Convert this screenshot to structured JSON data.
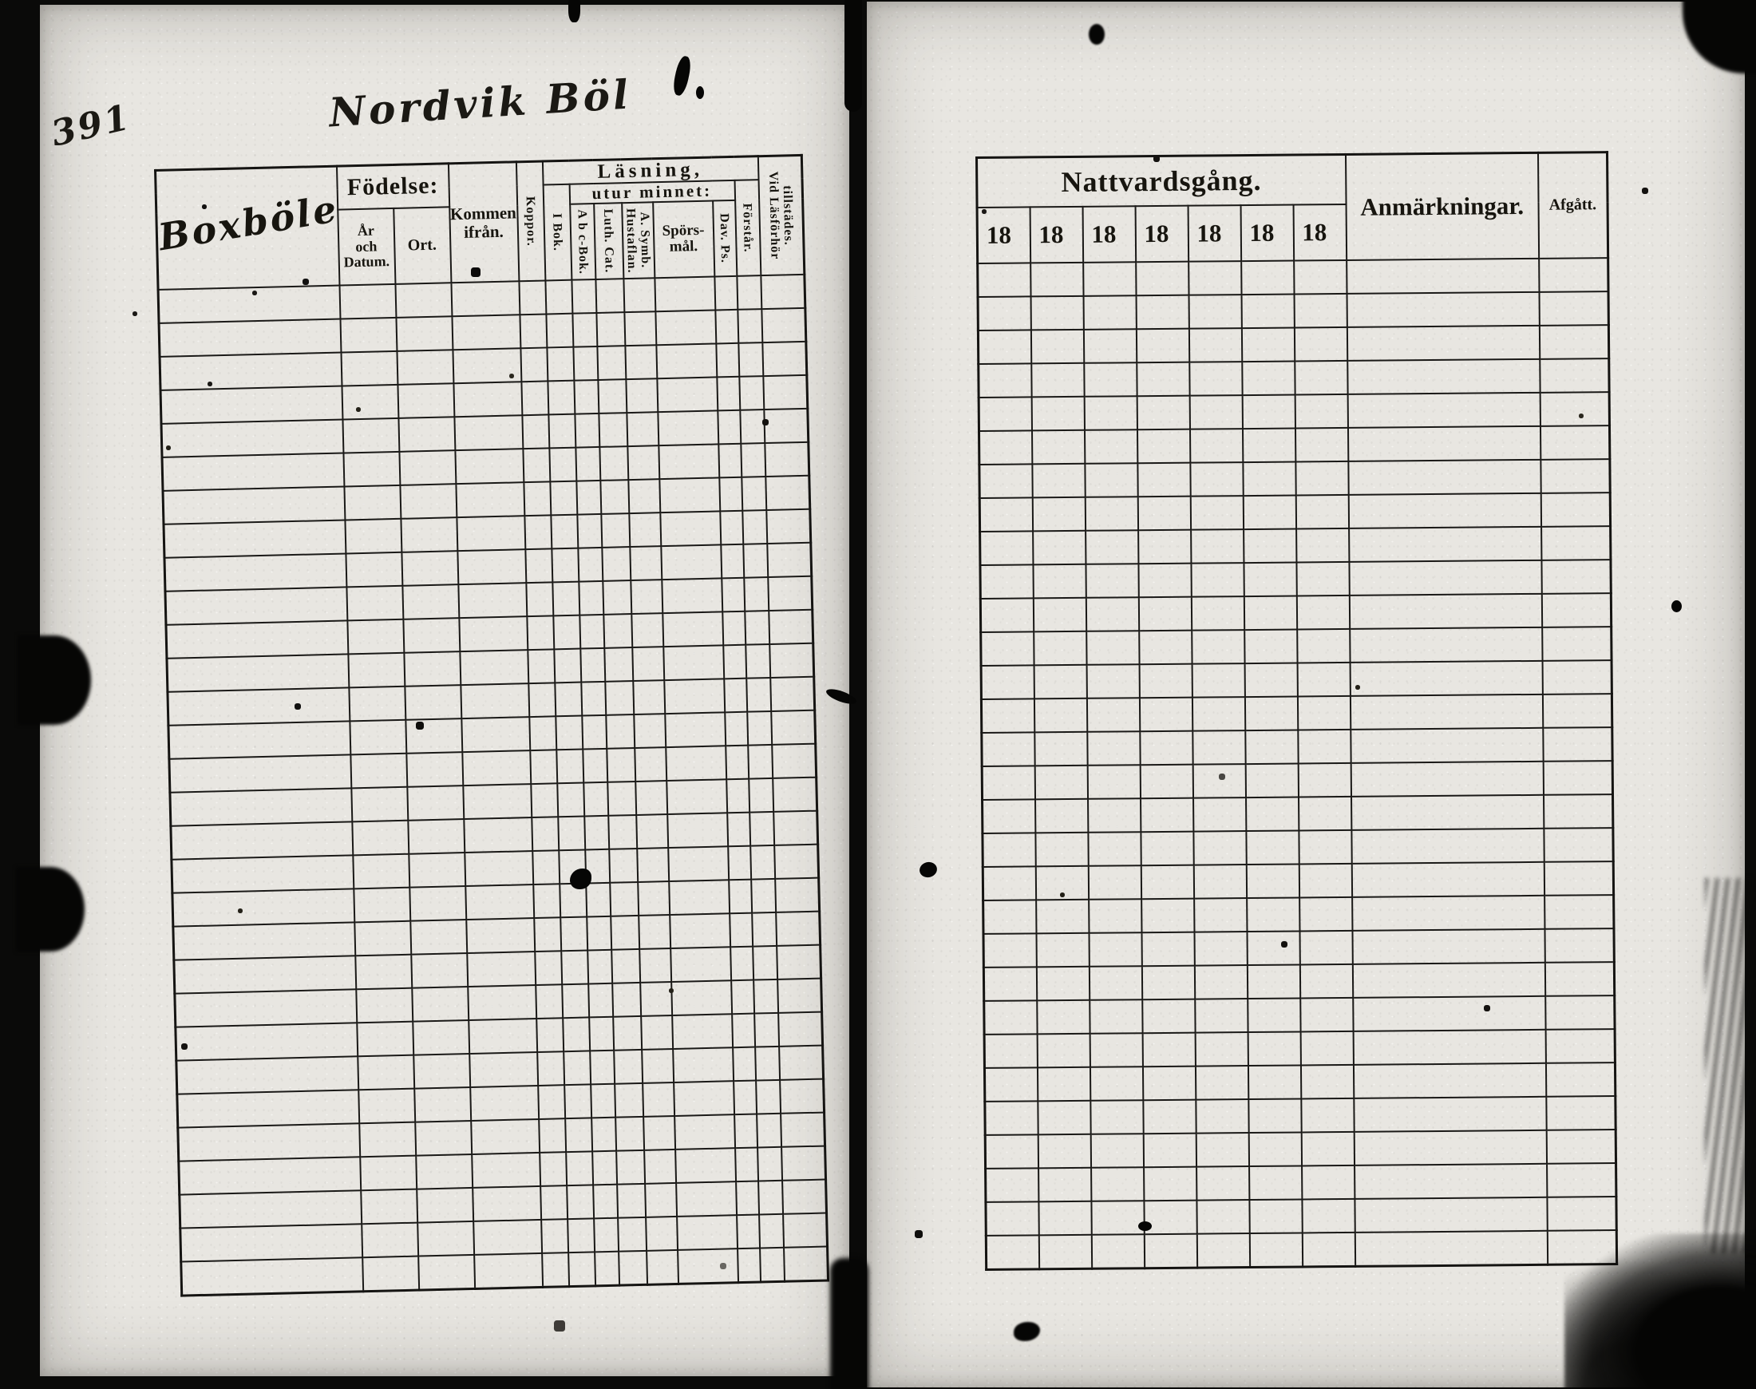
{
  "scan": {
    "handwritten_page_number": "391",
    "handwritten_header": "Nordvik Böl",
    "handwritten_village": "Boxböle"
  },
  "left_table": {
    "fodelse_label": "Födelse:",
    "ar_och_datum_label": "År\noch\nDatum.",
    "ort_label": "Ort.",
    "kommen_ifran_label": "Kommen\nifrån.",
    "koppor_label": "Koppor.",
    "lasning_label": "Läsning,",
    "i_bok_label": "I Bok.",
    "utur_minnet_label": "utur minnet:",
    "abc_bok_label": "A b c-Bok.",
    "luth_cat_label": "Luth. Cat.",
    "a_symb_label": "A. Symb.\nHustaflan.",
    "sporsmal_label": "Spörs-\nmål.",
    "dav_ps_label": "Dav. Ps.",
    "forstar_label": "Förstår.",
    "vid_lasforhor_label": "Vid Läsförhör\ntillstädes.",
    "data_rows": 30
  },
  "right_table": {
    "nattvardsgang_label": "Nattvardsgång.",
    "year_columns": [
      "18",
      "18",
      "18",
      "18",
      "18",
      "18",
      "18"
    ],
    "anmarkningar_label": "Anmärkningar.",
    "afgatt_label": "Afgått.",
    "data_rows": 30
  }
}
